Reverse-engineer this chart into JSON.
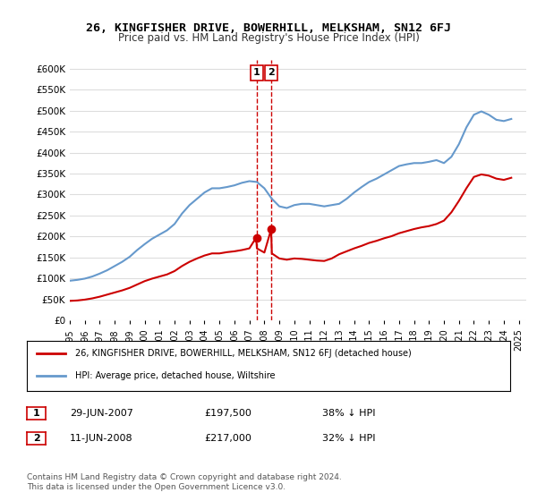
{
  "title": "26, KINGFISHER DRIVE, BOWERHILL, MELKSHAM, SN12 6FJ",
  "subtitle": "Price paid vs. HM Land Registry's House Price Index (HPI)",
  "ylabel_ticks": [
    0,
    50000,
    100000,
    150000,
    200000,
    250000,
    300000,
    350000,
    400000,
    450000,
    500000,
    550000,
    600000
  ],
  "ylim": [
    0,
    620000
  ],
  "xlim_start": 1995.0,
  "xlim_end": 2025.5,
  "hpi_color": "#6699cc",
  "property_color": "#cc0000",
  "dashed_line_color": "#cc0000",
  "hpi_data_x": [
    1995.0,
    1995.5,
    1996.0,
    1996.5,
    1997.0,
    1997.5,
    1998.0,
    1998.5,
    1999.0,
    1999.5,
    2000.0,
    2000.5,
    2001.0,
    2001.5,
    2002.0,
    2002.5,
    2003.0,
    2003.5,
    2004.0,
    2004.5,
    2005.0,
    2005.5,
    2006.0,
    2006.5,
    2007.0,
    2007.5,
    2008.0,
    2008.5,
    2009.0,
    2009.5,
    2010.0,
    2010.5,
    2011.0,
    2011.5,
    2012.0,
    2012.5,
    2013.0,
    2013.5,
    2014.0,
    2014.5,
    2015.0,
    2015.5,
    2016.0,
    2016.5,
    2017.0,
    2017.5,
    2018.0,
    2018.5,
    2019.0,
    2019.5,
    2020.0,
    2020.5,
    2021.0,
    2021.5,
    2022.0,
    2022.5,
    2023.0,
    2023.5,
    2024.0,
    2024.5
  ],
  "hpi_data_y": [
    95000,
    97000,
    100000,
    105000,
    112000,
    120000,
    130000,
    140000,
    152000,
    168000,
    182000,
    195000,
    205000,
    215000,
    230000,
    255000,
    275000,
    290000,
    305000,
    315000,
    315000,
    318000,
    322000,
    328000,
    332000,
    330000,
    315000,
    290000,
    272000,
    268000,
    275000,
    278000,
    278000,
    275000,
    272000,
    275000,
    278000,
    290000,
    305000,
    318000,
    330000,
    338000,
    348000,
    358000,
    368000,
    372000,
    375000,
    375000,
    378000,
    382000,
    375000,
    390000,
    420000,
    460000,
    490000,
    498000,
    490000,
    478000,
    475000,
    480000
  ],
  "property_data_x": [
    1995.0,
    1995.5,
    1996.0,
    1996.5,
    1997.0,
    1997.5,
    1998.0,
    1998.5,
    1999.0,
    1999.5,
    2000.0,
    2000.5,
    2001.0,
    2001.5,
    2002.0,
    2002.5,
    2003.0,
    2003.5,
    2004.0,
    2004.5,
    2005.0,
    2005.5,
    2006.0,
    2006.5,
    2007.0,
    2007.45,
    2007.5,
    2008.0,
    2008.45,
    2008.5,
    2009.0,
    2009.5,
    2010.0,
    2010.5,
    2011.0,
    2011.5,
    2012.0,
    2012.5,
    2013.0,
    2013.5,
    2014.0,
    2014.5,
    2015.0,
    2015.5,
    2016.0,
    2016.5,
    2017.0,
    2017.5,
    2018.0,
    2018.5,
    2019.0,
    2019.5,
    2020.0,
    2020.5,
    2021.0,
    2021.5,
    2022.0,
    2022.5,
    2023.0,
    2023.5,
    2024.0,
    2024.5
  ],
  "property_data_y": [
    47000,
    48000,
    50000,
    53000,
    57000,
    62000,
    67000,
    72000,
    78000,
    86000,
    94000,
    100000,
    105000,
    110000,
    118000,
    130000,
    140000,
    148000,
    155000,
    160000,
    160000,
    163000,
    165000,
    168000,
    172000,
    197500,
    172000,
    162000,
    217000,
    160000,
    148000,
    145000,
    148000,
    147000,
    145000,
    143000,
    142000,
    148000,
    158000,
    165000,
    172000,
    178000,
    185000,
    190000,
    196000,
    201000,
    208000,
    213000,
    218000,
    222000,
    225000,
    230000,
    238000,
    258000,
    285000,
    315000,
    342000,
    348000,
    345000,
    338000,
    335000,
    340000
  ],
  "transaction1_x": 2007.483,
  "transaction1_y": 197500,
  "transaction1_label": "1",
  "transaction1_date": "29-JUN-2007",
  "transaction1_price": "£197,500",
  "transaction1_hpi": "38% ↓ HPI",
  "transaction2_x": 2008.447,
  "transaction2_y": 217000,
  "transaction2_label": "2",
  "transaction2_date": "11-JUN-2008",
  "transaction2_price": "£217,000",
  "transaction2_hpi": "32% ↓ HPI",
  "legend_line1": "26, KINGFISHER DRIVE, BOWERHILL, MELKSHAM, SN12 6FJ (detached house)",
  "legend_line2": "HPI: Average price, detached house, Wiltshire",
  "footnote": "Contains HM Land Registry data © Crown copyright and database right 2024.\nThis data is licensed under the Open Government Licence v3.0.",
  "background_color": "#ffffff",
  "plot_bg_color": "#ffffff",
  "grid_color": "#dddddd"
}
